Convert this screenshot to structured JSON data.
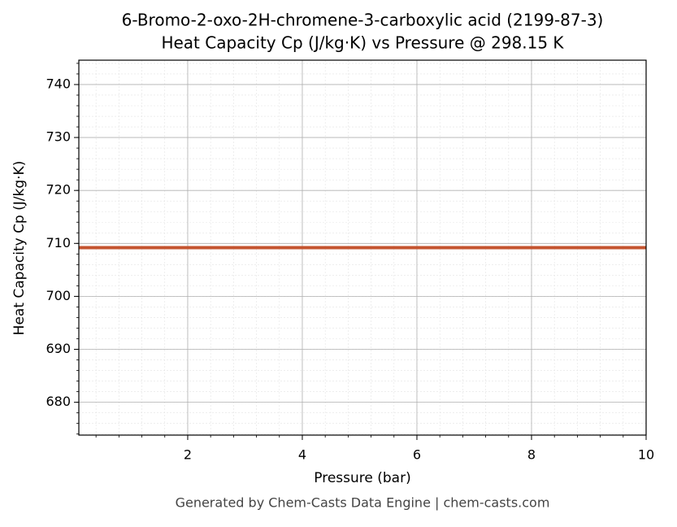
{
  "chart_data": {
    "type": "line",
    "title": "6-Bromo-2-oxo-2H-chromene-3-carboxylic acid (2199-87-3)",
    "subtitle": "Heat Capacity Cp (J/kg·K) vs Pressure @ 298.15 K",
    "x_label": "Pressure (bar)",
    "y_label": "Heat Capacity Cp (J/kg·K)",
    "footer": "Generated by Chem-Casts Data Engine | chem-casts.com",
    "x": [
      0.1,
      2,
      4,
      6,
      8,
      10
    ],
    "series": [
      {
        "name": "Heat Capacity Cp",
        "color": "#c4542f",
        "values": [
          709.2,
          709.2,
          709.2,
          709.2,
          709.2,
          709.2
        ]
      }
    ],
    "xlim": [
      0.1,
      10
    ],
    "ylim": [
      673.8,
      744.6
    ],
    "xticks": [
      2,
      4,
      6,
      8,
      10
    ],
    "yticks": [
      680,
      690,
      700,
      710,
      720,
      730,
      740
    ],
    "grid": true,
    "minor_grid": true
  }
}
